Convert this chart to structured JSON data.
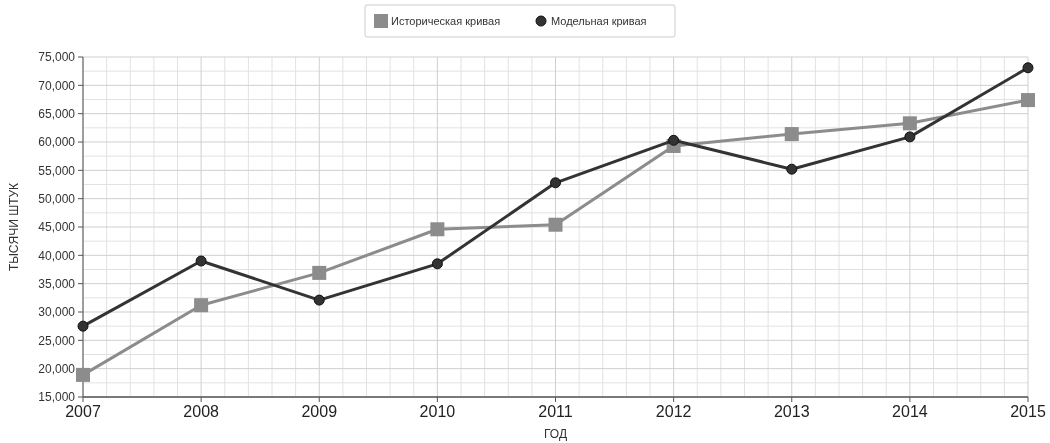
{
  "chart_data": {
    "type": "line",
    "xlabel": "ГОД",
    "ylabel": "ТЫСЯЧИ ШТУК",
    "x": [
      2007,
      2008,
      2009,
      2010,
      2011,
      2012,
      2013,
      2014,
      2015
    ],
    "xlim": [
      2007,
      2015
    ],
    "xticks": [
      2007,
      2008,
      2009,
      2010,
      2011,
      2012,
      2013,
      2014,
      2015
    ],
    "ylim": [
      15000,
      75000
    ],
    "yticks": [
      {
        "value": 15000,
        "label": "15,000"
      },
      {
        "value": 20000,
        "label": "20,000"
      },
      {
        "value": 25000,
        "label": "25,000"
      },
      {
        "value": 30000,
        "label": "30,000"
      },
      {
        "value": 35000,
        "label": "35,000"
      },
      {
        "value": 40000,
        "label": "40,000"
      },
      {
        "value": 45000,
        "label": "45,000"
      },
      {
        "value": 50000,
        "label": "50,000"
      },
      {
        "value": 55000,
        "label": "55,000"
      },
      {
        "value": 60000,
        "label": "60,000"
      },
      {
        "value": 65000,
        "label": "65,000"
      },
      {
        "value": 70000,
        "label": "70,000"
      },
      {
        "value": 75000,
        "label": "75,000"
      }
    ],
    "grid": true,
    "legend": "top",
    "line_style": "solid",
    "series": [
      {
        "name": "Историческая кривая",
        "color": "#8c8c8c",
        "marker": "square",
        "values": [
          18900,
          31200,
          36900,
          44600,
          45400,
          59300,
          61400,
          63300,
          67400
        ]
      },
      {
        "name": "Модельная кривая",
        "color": "#333333",
        "marker": "circle",
        "values": [
          27500,
          39000,
          32100,
          38500,
          52800,
          60300,
          55200,
          60900,
          73100
        ]
      }
    ]
  }
}
